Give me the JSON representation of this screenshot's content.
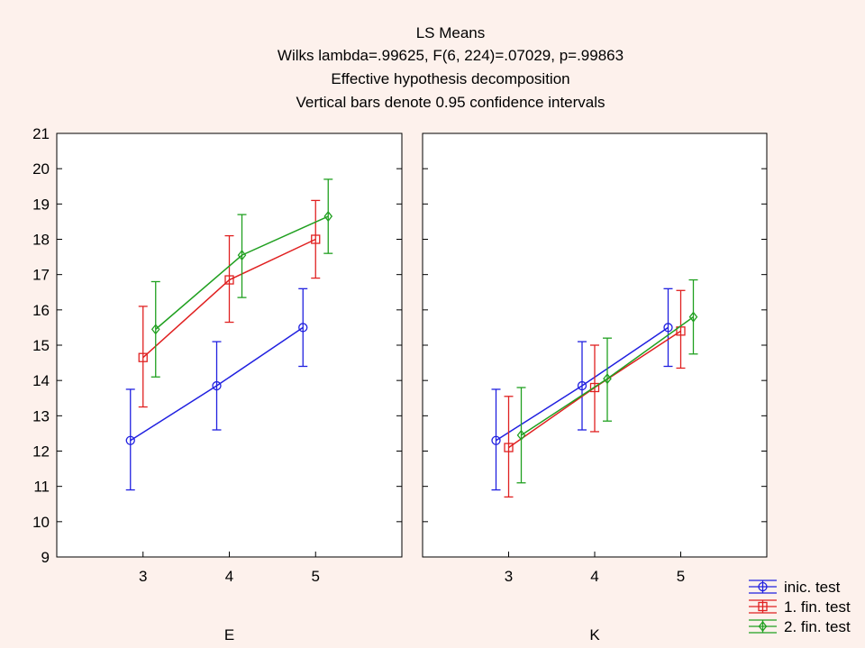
{
  "chart_data": {
    "type": "line",
    "title_lines": [
      "LS Means",
      "Wilks lambda=.99625, F(6, 224)=.07029, p=.99863",
      "Effective hypothesis decomposition",
      "Vertical bars denote 0.95 confidence intervals"
    ],
    "ylim": [
      9,
      21
    ],
    "yticks": [
      9,
      10,
      11,
      12,
      13,
      14,
      15,
      16,
      17,
      18,
      19,
      20,
      21
    ],
    "x_categories": [
      "3",
      "4",
      "5"
    ],
    "legend_position": "bottom-right",
    "series": [
      {
        "name": "inic. test",
        "color": "#2020e0",
        "marker": "circle"
      },
      {
        "name": "1. fin. test",
        "color": "#e02020",
        "marker": "square"
      },
      {
        "name": "2. fin. test",
        "color": "#20a020",
        "marker": "diamond"
      }
    ],
    "panels": [
      {
        "label": "E",
        "series_values": [
          {
            "means": [
              12.3,
              13.85,
              15.5
            ],
            "lower": [
              10.9,
              12.6,
              14.4
            ],
            "upper": [
              13.75,
              15.1,
              16.6
            ]
          },
          {
            "means": [
              14.65,
              16.85,
              18.0
            ],
            "lower": [
              13.25,
              15.65,
              16.9
            ],
            "upper": [
              16.1,
              18.1,
              19.1
            ]
          },
          {
            "means": [
              15.45,
              17.55,
              18.65
            ],
            "lower": [
              14.1,
              16.35,
              17.6
            ],
            "upper": [
              16.8,
              18.7,
              19.7
            ]
          }
        ]
      },
      {
        "label": "K",
        "series_values": [
          {
            "means": [
              12.3,
              13.85,
              15.5
            ],
            "lower": [
              10.9,
              12.6,
              14.4
            ],
            "upper": [
              13.75,
              15.1,
              16.6
            ]
          },
          {
            "means": [
              12.1,
              13.8,
              15.4
            ],
            "lower": [
              10.7,
              12.55,
              14.35
            ],
            "upper": [
              13.55,
              15.0,
              16.55
            ]
          },
          {
            "means": [
              12.45,
              14.05,
              15.8
            ],
            "lower": [
              11.1,
              12.85,
              14.75
            ],
            "upper": [
              13.8,
              15.2,
              16.85
            ]
          }
        ]
      }
    ]
  }
}
